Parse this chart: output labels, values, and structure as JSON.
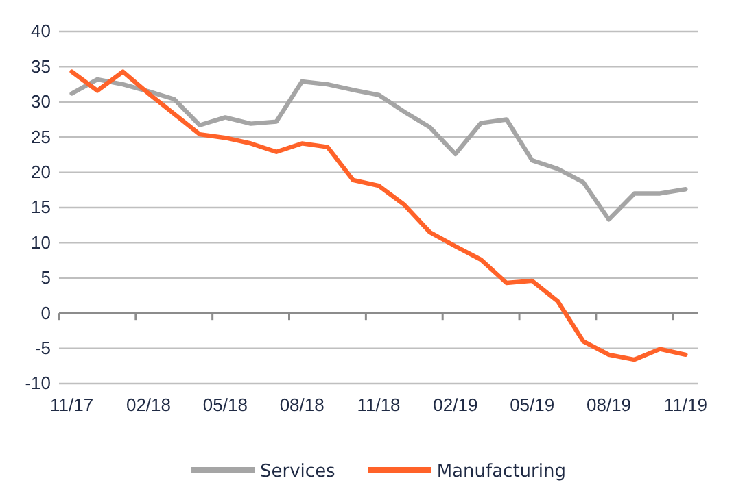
{
  "chart_data": {
    "type": "line",
    "categories": [
      "11/17",
      null,
      null,
      "02/18",
      null,
      null,
      "05/18",
      null,
      null,
      "08/18",
      null,
      null,
      "11/18",
      null,
      null,
      "02/19",
      null,
      null,
      "05/19",
      null,
      null,
      "08/19",
      null,
      null,
      "11/19"
    ],
    "series": [
      {
        "name": "Services",
        "color": "#a5a5a5",
        "values": [
          31.2,
          33.2,
          32.5,
          31.5,
          30.4,
          26.7,
          27.8,
          26.9,
          27.2,
          32.9,
          32.5,
          31.7,
          31.0,
          28.6,
          26.4,
          22.6,
          27.0,
          27.5,
          21.7,
          20.5,
          18.6,
          13.3,
          17.0,
          17.0,
          17.6
        ]
      },
      {
        "name": "Manufacturing",
        "color": "#ff6229",
        "values": [
          34.3,
          31.6,
          34.3,
          31.2,
          28.3,
          25.4,
          24.9,
          24.1,
          22.9,
          24.1,
          23.6,
          18.9,
          18.1,
          15.4,
          11.5,
          9.5,
          7.6,
          4.3,
          4.6,
          1.7,
          -4.0,
          -5.9,
          -6.6,
          -5.1,
          -5.9
        ]
      }
    ],
    "ylim": [
      -10,
      40
    ],
    "yticks": [
      -10,
      -5,
      0,
      5,
      10,
      15,
      20,
      25,
      30,
      35,
      40
    ],
    "grid": "y",
    "legend": "bottom",
    "line_style": "solid",
    "marker": "none"
  }
}
